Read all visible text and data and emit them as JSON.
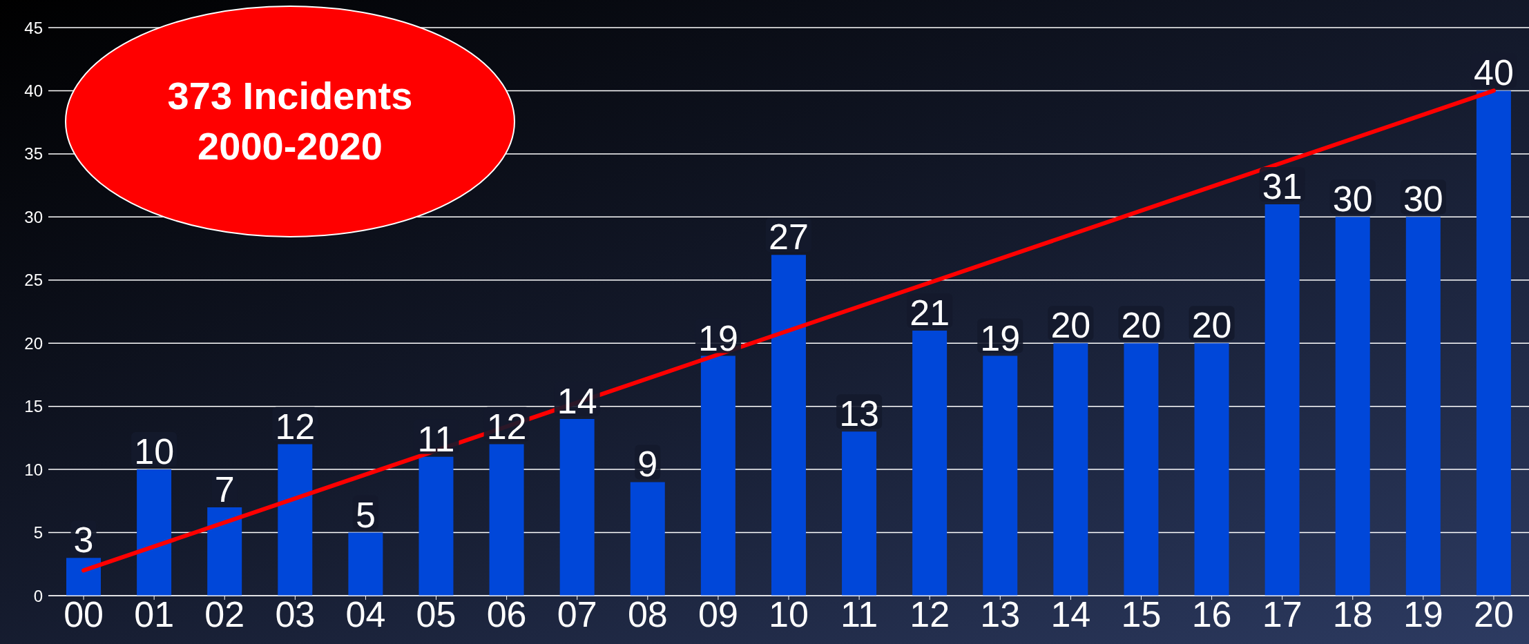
{
  "chart_data": {
    "type": "bar",
    "categories": [
      "00",
      "01",
      "02",
      "03",
      "04",
      "05",
      "06",
      "07",
      "08",
      "09",
      "10",
      "11",
      "12",
      "13",
      "14",
      "15",
      "16",
      "17",
      "18",
      "19",
      "20"
    ],
    "series": [
      {
        "color": "#0047d9",
        "values": [
          3,
          10,
          7,
          12,
          5,
          11,
          12,
          14,
          9,
          19,
          27,
          13,
          21,
          19,
          20,
          20,
          20,
          31,
          30,
          30,
          40
        ],
        "value_labels": [
          "3",
          "10",
          "7",
          "12",
          "5",
          "11",
          "12",
          "14",
          "9",
          "19",
          "27",
          "13",
          "21",
          "19",
          "20",
          "20",
          "20",
          "31",
          "30",
          "30",
          "40"
        ]
      },
      {
        "type": "line",
        "color": "#ff0000",
        "x": [
          "00",
          "20"
        ],
        "values": [
          2,
          40
        ]
      }
    ],
    "ylim": [
      0,
      45
    ],
    "yticks": [
      0,
      5,
      10,
      15,
      20,
      25,
      30,
      35,
      40,
      45
    ],
    "grid": "y",
    "annotations": [
      "373 Incidents\n2000-2020"
    ]
  }
}
